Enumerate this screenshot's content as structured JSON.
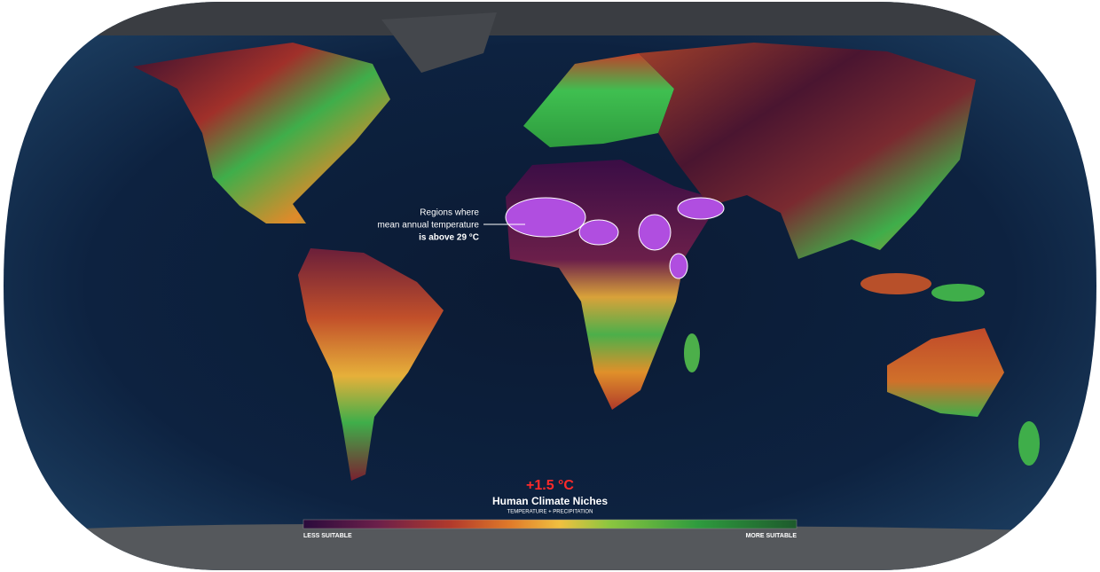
{
  "annotation": {
    "lines": [
      "Regions where",
      "mean annual temperature",
      "is above 29 °C"
    ]
  },
  "legend": {
    "scenario": "+1.5 °C",
    "title": "Human Climate Niches",
    "subtitle": "TEMPERATURE + PRECIPITATION",
    "low_label": "LESS SUITABLE",
    "high_label": "MORE SUITABLE"
  }
}
